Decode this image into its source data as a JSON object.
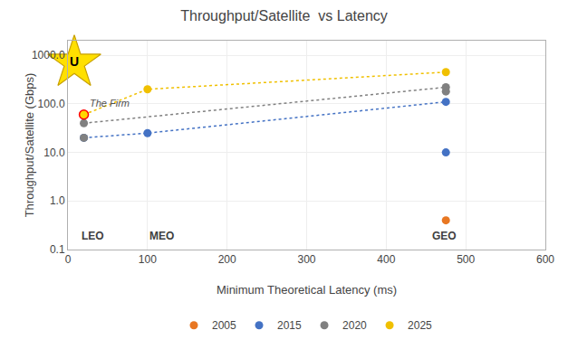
{
  "chart_data": {
    "type": "scatter",
    "title": "Throughput/Satellite  vs Latency",
    "xlabel": "Minimum Theoretical Latency (ms)",
    "ylabel": "Throughput/Satellite (Gbps)",
    "log": "y",
    "grid": true,
    "legend": "bottom",
    "xlim": [
      0,
      600
    ],
    "xticks": [
      0,
      100,
      200,
      300,
      400,
      500,
      600
    ],
    "ylim": [
      0.1,
      2000
    ],
    "yticks": [
      0.1,
      {
        "value": 1,
        "label": "1.0"
      },
      {
        "value": 10,
        "label": "10.0"
      },
      {
        "value": 100,
        "label": "100.0"
      },
      {
        "value": 1000,
        "label": "1000.0"
      }
    ],
    "series": [
      {
        "name": "2005",
        "color": "#E87722",
        "marker": "circle",
        "x": [
          20,
          475
        ],
        "values": [
          60,
          0.4
        ]
      },
      {
        "name": "2015",
        "color": "#4472C4",
        "marker": "circle",
        "x": [
          20,
          100,
          475,
          475
        ],
        "values": [
          20,
          25,
          10,
          110
        ],
        "line_style": "dotted",
        "line_x": [
          20,
          100,
          475
        ],
        "line_values": [
          20,
          25,
          110
        ]
      },
      {
        "name": "2020",
        "color": "#808080",
        "marker": "circle",
        "x": [
          20,
          20,
          475,
          475
        ],
        "values": [
          20,
          40,
          220,
          180
        ],
        "line_style": "dotted",
        "line_x": [
          20,
          475
        ],
        "line_values": [
          40,
          220
        ]
      },
      {
        "name": "2025",
        "color": "#F0C000",
        "marker": "circle",
        "x": [
          20,
          100,
          475
        ],
        "values": [
          60,
          200,
          450
        ],
        "line_style": "dotted",
        "line_x": [
          20,
          100,
          475
        ],
        "line_values": [
          60,
          200,
          450
        ]
      }
    ],
    "highlight": {
      "x": 20,
      "y": 60,
      "color": "#FFD700",
      "edge_color": "red"
    },
    "annotations": [
      {
        "text": "U",
        "x": 8,
        "y": 700,
        "marker": "star",
        "color": "#FFE000",
        "edge_color": "#C8A000"
      },
      {
        "text": "The Firm",
        "x": 25,
        "y": 75,
        "color": "#505050"
      },
      {
        "text": "LEO",
        "x": 15,
        "y": 0.13,
        "color": "#404040"
      },
      {
        "text": "MEO",
        "x": 100,
        "y": 0.13,
        "color": "#404040"
      },
      {
        "text": "GEO",
        "x": 455,
        "y": 0.13,
        "color": "#404040"
      }
    ]
  }
}
